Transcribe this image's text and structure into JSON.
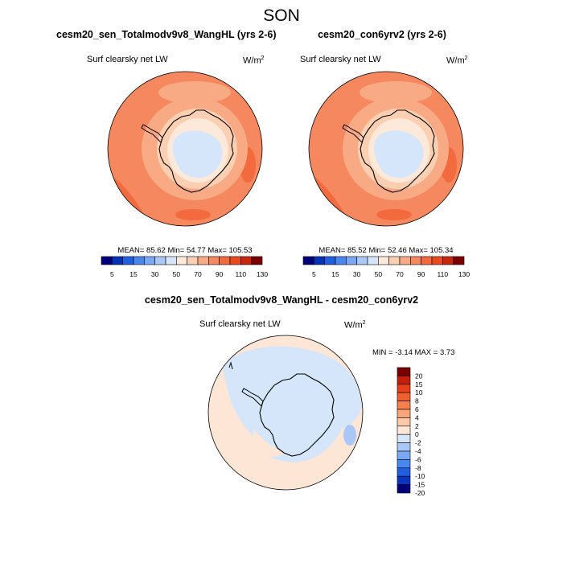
{
  "figure": {
    "title": "SON"
  },
  "panels": [
    {
      "title": "cesm20_sen_Totalmodv9v8_WangHL (yrs 2-6)",
      "variable": "Surf clearsky net LW",
      "units_base": "W/m",
      "units_exp": "2",
      "stats_text": "MEAN=  85.62  Min=  54.77  Max= 105.53"
    },
    {
      "title": "cesm20_con6yrv2 (yrs 2-6)",
      "variable": "Surf clearsky net LW",
      "units_base": "W/m",
      "units_exp": "2",
      "stats_text": "MEAN=  85.52  Min=  52.46  Max= 105.34"
    },
    {
      "title": "cesm20_sen_Totalmodv9v8_WangHL - cesm20_con6yrv2",
      "variable": "Surf clearsky net LW",
      "units_base": "W/m",
      "units_exp": "2",
      "stats_text": "MIN =  -3.14 MAX =   3.73"
    }
  ],
  "colorbar_abs": {
    "tick_labels": [
      "5",
      "15",
      "30",
      "50",
      "70",
      "90",
      "110",
      "130"
    ],
    "colors": [
      "#00007a",
      "#0033b8",
      "#2060e0",
      "#4a86f0",
      "#7aa8f5",
      "#a9c8f7",
      "#d6e6fa",
      "#fde9da",
      "#fbcfb2",
      "#f8aa85",
      "#f5885e",
      "#f26a3d",
      "#e84a1e",
      "#c7280a",
      "#7a0000"
    ]
  },
  "colorbar_diff": {
    "tick_labels": [
      "20",
      "15",
      "10",
      "8",
      "6",
      "4",
      "2",
      "0",
      "-2",
      "-4",
      "-6",
      "-8",
      "-10",
      "-15",
      "-20"
    ],
    "colors": [
      "#7a0000",
      "#c2200a",
      "#e5401a",
      "#f0602e",
      "#f5804c",
      "#f8a57a",
      "#fbc9a8",
      "#fde6d6",
      "#d6e6fa",
      "#a9c8f7",
      "#7aa8f5",
      "#4a86f0",
      "#2060e0",
      "#0a35c0",
      "#00007a"
    ]
  },
  "chart_data": [
    {
      "type": "heatmap",
      "projection": "south polar stereographic",
      "title": "cesm20_sen_Totalmodv9v8_WangHL (yrs 2-6)",
      "season": "SON",
      "variable": "Surf clearsky net LW",
      "units": "W/m2",
      "mean": 85.62,
      "min": 54.77,
      "max": 105.53,
      "colorbar_levels": [
        5,
        15,
        30,
        50,
        70,
        90,
        110,
        130
      ]
    },
    {
      "type": "heatmap",
      "projection": "south polar stereographic",
      "title": "cesm20_con6yrv2 (yrs 2-6)",
      "season": "SON",
      "variable": "Surf clearsky net LW",
      "units": "W/m2",
      "mean": 85.52,
      "min": 52.46,
      "max": 105.34,
      "colorbar_levels": [
        5,
        15,
        30,
        50,
        70,
        90,
        110,
        130
      ]
    },
    {
      "type": "heatmap",
      "projection": "south polar stereographic",
      "title": "cesm20_sen_Totalmodv9v8_WangHL - cesm20_con6yrv2",
      "season": "SON",
      "variable": "Surf clearsky net LW",
      "units": "W/m2",
      "min": -3.14,
      "max": 3.73,
      "colorbar_levels": [
        20,
        15,
        10,
        8,
        6,
        4,
        2,
        0,
        -2,
        -4,
        -6,
        -8,
        -10,
        -15,
        -20
      ]
    }
  ]
}
